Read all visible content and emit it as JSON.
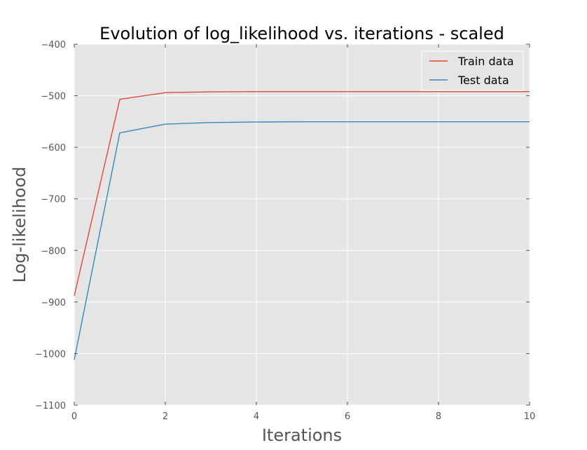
{
  "chart_data": {
    "type": "line",
    "title": "Evolution of log_likelihood vs. iterations - scaled",
    "xlabel": "Iterations",
    "ylabel": "Log-likelihood",
    "xlim": [
      0,
      10
    ],
    "ylim": [
      -1100,
      -400
    ],
    "xticks": [
      0,
      2,
      4,
      6,
      8,
      10
    ],
    "yticks": [
      -1100,
      -1000,
      -900,
      -800,
      -700,
      -600,
      -500,
      -400
    ],
    "grid": true,
    "legend": "top-right",
    "x": [
      0,
      1,
      2,
      3,
      4,
      5,
      6,
      7,
      8,
      9,
      10
    ],
    "series": [
      {
        "name": "Train data",
        "color": "#e24a33",
        "values": [
          -888,
          -507,
          -494,
          -492.5,
          -492,
          -492,
          -492,
          -492,
          -492,
          -492,
          -492
        ]
      },
      {
        "name": "Test data",
        "color": "#348abd",
        "values": [
          -1012,
          -572,
          -555,
          -552,
          -551,
          -550.5,
          -550.5,
          -550.5,
          -550.5,
          -550.5,
          -550.5
        ]
      }
    ],
    "colors": {
      "plot_bg": "#e5e5e5",
      "grid": "#ffffff",
      "tick_text": "#555555"
    }
  }
}
